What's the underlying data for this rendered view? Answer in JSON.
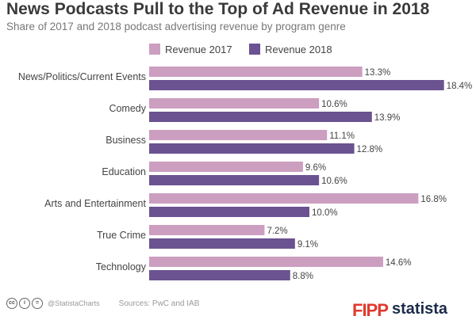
{
  "header": {
    "title": "News Podcasts Pull to the Top of Ad Revenue in 2018",
    "subtitle": "Share of 2017 and 2018 podcast advertising revenue by program genre"
  },
  "footer": {
    "credit": "@StatistaCharts",
    "sources": "Sources: PwC and IAB",
    "logo_fipp": "FIPP",
    "logo_statista": "statista",
    "license_icons": [
      "cc-icon",
      "by-icon",
      "nd-icon"
    ]
  },
  "colors": {
    "revenue_2017": "#cc9ec0",
    "revenue_2018": "#6b5291"
  },
  "chart_data": {
    "type": "bar",
    "orientation": "horizontal",
    "title": "News Podcasts Pull to the Top of Ad Revenue in 2018",
    "subtitle": "Share of 2017 and 2018 podcast advertising revenue by program genre",
    "categories": [
      "News/Politics/Current Events",
      "Comedy",
      "Business",
      "Education",
      "Arts and Entertainment",
      "True Crime",
      "Technology"
    ],
    "series": [
      {
        "name": "Revenue 2017",
        "values": [
          13.3,
          10.6,
          11.1,
          9.6,
          16.8,
          7.2,
          14.6
        ]
      },
      {
        "name": "Revenue 2018",
        "values": [
          18.4,
          13.9,
          12.8,
          10.6,
          10.0,
          9.1,
          8.8
        ]
      }
    ],
    "value_suffix": "%",
    "xlim": [
      0,
      20
    ],
    "grid": false,
    "legend_position": "top"
  }
}
